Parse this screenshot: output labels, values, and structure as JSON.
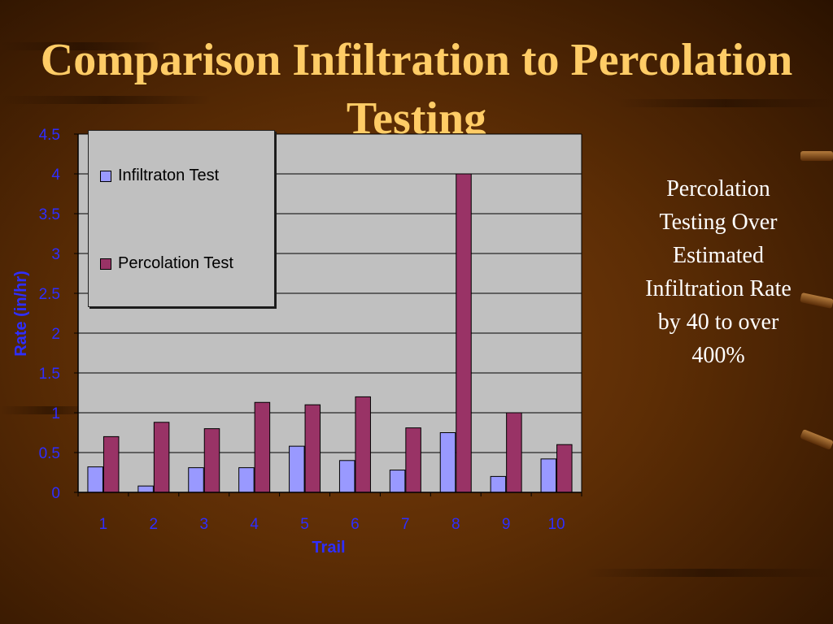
{
  "title": "Comparison Infiltration to Percolation Testing",
  "side_note": "Percolation Testing Over Estimated Infiltration Rate by 40 to over 400%",
  "colors": {
    "title": "#ffcc66",
    "axis_text": "#2e2eff",
    "plot_bg": "#c0c0c0",
    "infiltration": "#9999ff",
    "percolation": "#993366"
  },
  "chart_data": {
    "type": "bar",
    "title": "",
    "xlabel": "Trail",
    "ylabel": "Rate (in/hr)",
    "categories": [
      "1",
      "2",
      "3",
      "4",
      "5",
      "6",
      "7",
      "8",
      "9",
      "10"
    ],
    "series": [
      {
        "name": "Infiltraton Test",
        "color": "#9999ff",
        "values": [
          0.32,
          0.08,
          0.31,
          0.31,
          0.58,
          0.4,
          0.28,
          0.75,
          0.2,
          0.42
        ]
      },
      {
        "name": "Percolation Test",
        "color": "#993366",
        "values": [
          0.7,
          0.88,
          0.8,
          1.13,
          1.1,
          1.2,
          0.81,
          4.0,
          1.0,
          0.6
        ]
      }
    ],
    "yticks": [
      "0",
      "0.5",
      "1",
      "1.5",
      "2",
      "2.5",
      "3",
      "3.5",
      "4",
      "4.5"
    ],
    "ylim": [
      0,
      4.5
    ],
    "grid": true,
    "legend_position": "top-left"
  }
}
